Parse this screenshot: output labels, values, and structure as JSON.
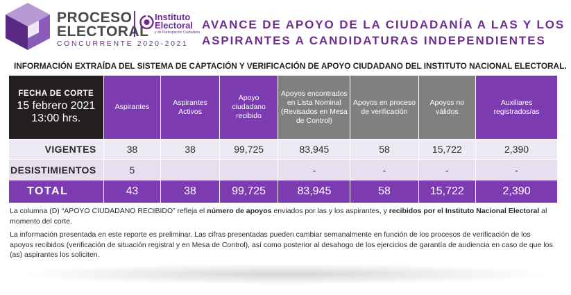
{
  "header": {
    "logo_line1": "PROCESO",
    "logo_line2": "ELECTORAL",
    "logo_sub": "CONCURRENTE  2020-2021",
    "institute_line1": "Instituto",
    "institute_line2": "Electoral",
    "institute_small": "y de Participación Ciudadana",
    "title_line1": "AVANCE DE APOYO DE LA CIUDADANÍA A LAS Y LOS",
    "title_line2": "ASPIRANTES A CANDIDATURAS INDEPENDIENTES",
    "subtitle": "INFORMACIÓN EXTRAÍDA DEL SISTEMA DE CAPTACIÓN Y VERIFICACIÓN DE APOYO CIUDADANO DEL INSTITUTO NACIONAL ELECTORAL."
  },
  "colors": {
    "purple": "#7c3bb0",
    "purple_text": "#6d2c8f",
    "gray": "#808080",
    "dark": "#231f20"
  },
  "table": {
    "corte_label": "FECHA DE CORTE",
    "corte_date": "15 febrero 2021",
    "corte_time": "13:00 hrs.",
    "headers": [
      {
        "label": "Aspirantes",
        "style": "purple"
      },
      {
        "label": "Aspirantes Activos",
        "style": "purple"
      },
      {
        "label": "Apoyo ciudadano recibido",
        "style": "purple"
      },
      {
        "label": "Apoyos encontrados en Lista Nominal (Revisados en Mesa de Control)",
        "style": "gray"
      },
      {
        "label": "Apoyos en proceso de verificación",
        "style": "gray"
      },
      {
        "label": "Apoyos no válidos",
        "style": "gray"
      },
      {
        "label": "Auxiliares registrados/as",
        "style": "purple"
      }
    ],
    "rows": [
      {
        "label": "VIGENTES",
        "values": [
          "38",
          "38",
          "99,725",
          "83,945",
          "58",
          "15,722",
          "2,390"
        ]
      },
      {
        "label": "DESISTIMIENTOS",
        "values": [
          "5",
          "",
          "",
          "-",
          "-",
          "-",
          "-"
        ]
      },
      {
        "label": "TOTAL",
        "values": [
          "43",
          "38",
          "99,725",
          "83,945",
          "58",
          "15,722",
          "2,390"
        ]
      }
    ]
  },
  "notes": {
    "note1_a": "La columna (D) “APOYO CIUDADANO RECIBIDO” refleja el ",
    "note1_b": "número de apoyos",
    "note1_c": " enviados por las y los aspirantes, y ",
    "note1_d": "recibidos por el Instituto Nacional Electoral",
    "note1_e": " al momento del corte.",
    "note2": "La información presentada en este reporte es preliminar. Las cifras presentadas pueden cambiar semanalmente en función de los procesos de verificación de los apoyos recibidos (verificación de situación registral y en Mesa de Control), así como posterior al desahogo de los ejercicios de garantía de audiencia en caso de que los (as) aspirantes los soliciten."
  }
}
